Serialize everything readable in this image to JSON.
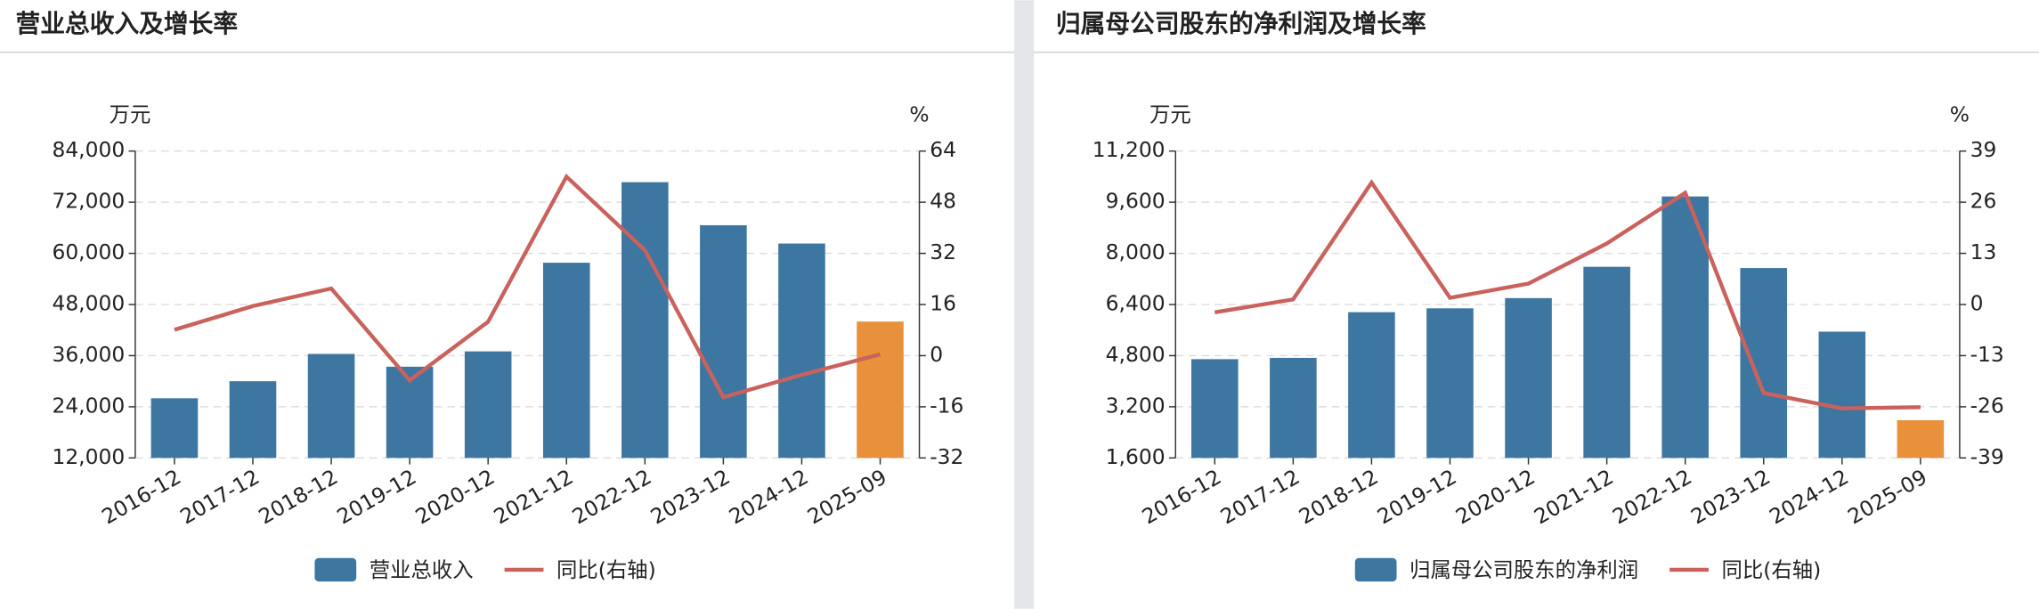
{
  "chart_data": [
    {
      "type": "combo",
      "title": "营业总收入及增长率",
      "y_unit": "万元",
      "y2_unit": "%",
      "categories": [
        "2016-12",
        "2017-12",
        "2018-12",
        "2019-12",
        "2020-12",
        "2021-12",
        "2022-12",
        "2023-12",
        "2024-12",
        "2025-09"
      ],
      "series": [
        {
          "name": "营业总收入",
          "type": "bar",
          "color": "#3d76a0",
          "colors": [
            "#3d76a0",
            "#3d76a0",
            "#3d76a0",
            "#3d76a0",
            "#3d76a0",
            "#3d76a0",
            "#3d76a0",
            "#3d76a0",
            "#3d76a0",
            "#e8913a"
          ],
          "values": [
            26000,
            30000,
            36400,
            33400,
            37000,
            57800,
            76700,
            66600,
            62300,
            44000
          ]
        },
        {
          "name": "同比(右轴)",
          "type": "line",
          "axis": "y2",
          "color": "#c9625d",
          "values": [
            8.1,
            15.5,
            21,
            -7.7,
            10.6,
            56,
            33,
            -13,
            -6,
            0.4
          ]
        }
      ],
      "ylim": [
        12000,
        84000
      ],
      "yticks": [
        {
          "value": 12000,
          "label": "12,000"
        },
        {
          "value": 24000,
          "label": "24,000"
        },
        {
          "value": 36000,
          "label": "36,000"
        },
        {
          "value": 48000,
          "label": "48,000"
        },
        {
          "value": 60000,
          "label": "60,000"
        },
        {
          "value": 72000,
          "label": "72,000"
        },
        {
          "value": 84000,
          "label": "84,000"
        }
      ],
      "y2lim": [
        -32,
        64
      ],
      "y2ticks": [
        -32,
        -16,
        0,
        16,
        32,
        48,
        64
      ],
      "grid": true
    },
    {
      "type": "combo",
      "title": "归属母公司股东的净利润及增长率",
      "y_unit": "万元",
      "y2_unit": "%",
      "categories": [
        "2016-12",
        "2017-12",
        "2018-12",
        "2019-12",
        "2020-12",
        "2021-12",
        "2022-12",
        "2023-12",
        "2024-12",
        "2025-09"
      ],
      "series": [
        {
          "name": "归属母公司股东的净利润",
          "type": "bar",
          "color": "#3d76a0",
          "colors": [
            "#3d76a0",
            "#3d76a0",
            "#3d76a0",
            "#3d76a0",
            "#3d76a0",
            "#3d76a0",
            "#3d76a0",
            "#3d76a0",
            "#3d76a0",
            "#e8913a"
          ],
          "values": [
            4690,
            4730,
            6160,
            6280,
            6600,
            7580,
            9780,
            7540,
            5550,
            2780
          ]
        },
        {
          "name": "同比(右轴)",
          "type": "line",
          "axis": "y2",
          "color": "#c9625d",
          "values": [
            -2,
            1.3,
            31,
            1.7,
            5.3,
            15.5,
            28.4,
            -22.5,
            -26.4,
            -26.1
          ]
        }
      ],
      "ylim": [
        1600,
        11200
      ],
      "yticks": [
        {
          "value": 1600,
          "label": "1,600"
        },
        {
          "value": 3200,
          "label": "3,200"
        },
        {
          "value": 4800,
          "label": "4,800"
        },
        {
          "value": 6400,
          "label": "6,400"
        },
        {
          "value": 8000,
          "label": "8,000"
        },
        {
          "value": 9600,
          "label": "9,600"
        },
        {
          "value": 11200,
          "label": "11,200"
        }
      ],
      "y2lim": [
        -39,
        39
      ],
      "y2ticks": [
        -39,
        -26,
        -13,
        0,
        13,
        26,
        39
      ],
      "grid": true
    }
  ]
}
